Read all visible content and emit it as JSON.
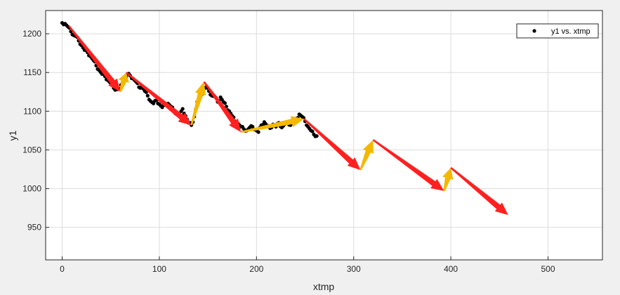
{
  "chart_data": {
    "type": "scatter",
    "xlabel": "xtmp",
    "ylabel": "y1",
    "xlim": [
      -17,
      556
    ],
    "ylim": [
      908,
      1230
    ],
    "xticks": [
      0,
      100,
      200,
      300,
      400,
      500
    ],
    "yticks": [
      950,
      1000,
      1050,
      1100,
      1150,
      1200
    ],
    "grid": true,
    "legend_position": "top-right",
    "legend": [
      "y1 vs. xtmp"
    ],
    "colors": {
      "down": "#ff2020",
      "up": "#f5b800",
      "points": "#000000",
      "axes_bg": "#ffffff",
      "figure_bg": "#f0f0f0"
    },
    "series": [
      {
        "name": "y1 vs. xtmp",
        "kind": "points",
        "color": "#000000",
        "points": [
          [
            0,
            1214
          ],
          [
            3,
            1213
          ],
          [
            6,
            1209
          ],
          [
            9,
            1203
          ],
          [
            12,
            1198
          ],
          [
            14,
            1197
          ],
          [
            17,
            1191
          ],
          [
            20,
            1185
          ],
          [
            23,
            1179
          ],
          [
            26,
            1176
          ],
          [
            29,
            1171
          ],
          [
            32,
            1166
          ],
          [
            35,
            1159
          ],
          [
            38,
            1153
          ],
          [
            41,
            1148
          ],
          [
            44,
            1145
          ],
          [
            47,
            1140
          ],
          [
            50,
            1136
          ],
          [
            53,
            1130
          ],
          [
            56,
            1128
          ],
          [
            59,
            1129
          ],
          [
            62,
            1136
          ],
          [
            65,
            1141
          ],
          [
            67,
            1148
          ],
          [
            70,
            1146
          ],
          [
            73,
            1142
          ],
          [
            76,
            1138
          ],
          [
            79,
            1131
          ],
          [
            82,
            1132
          ],
          [
            85,
            1126
          ],
          [
            88,
            1120
          ],
          [
            91,
            1113
          ],
          [
            94,
            1110
          ],
          [
            97,
            1114
          ],
          [
            100,
            1109
          ],
          [
            103,
            1105
          ],
          [
            106,
            1108
          ],
          [
            109,
            1110
          ],
          [
            112,
            1106
          ],
          [
            115,
            1101
          ],
          [
            118,
            1096
          ],
          [
            121,
            1094
          ],
          [
            124,
            1103
          ],
          [
            127,
            1094
          ],
          [
            130,
            1085
          ],
          [
            133,
            1082
          ],
          [
            136,
            1093
          ],
          [
            139,
            1112
          ],
          [
            142,
            1117
          ],
          [
            145,
            1128
          ],
          [
            148,
            1131
          ],
          [
            151,
            1126
          ],
          [
            154,
            1120
          ],
          [
            157,
            1119
          ],
          [
            160,
            1112
          ],
          [
            163,
            1118
          ],
          [
            166,
            1112
          ],
          [
            169,
            1106
          ],
          [
            172,
            1100
          ],
          [
            175,
            1094
          ],
          [
            178,
            1087
          ],
          [
            181,
            1084
          ],
          [
            184,
            1080
          ],
          [
            187,
            1077
          ],
          [
            190,
            1075
          ],
          [
            193,
            1079
          ],
          [
            196,
            1080
          ],
          [
            199,
            1076
          ],
          [
            202,
            1073
          ],
          [
            205,
            1082
          ],
          [
            208,
            1086
          ],
          [
            211,
            1081
          ],
          [
            214,
            1078
          ],
          [
            217,
            1083
          ],
          [
            220,
            1080
          ],
          [
            223,
            1085
          ],
          [
            226,
            1079
          ],
          [
            229,
            1083
          ],
          [
            232,
            1086
          ],
          [
            235,
            1082
          ],
          [
            238,
            1088
          ],
          [
            241,
            1090
          ],
          [
            244,
            1096
          ],
          [
            247,
            1093
          ],
          [
            250,
            1087
          ],
          [
            253,
            1080
          ],
          [
            256,
            1075
          ],
          [
            259,
            1070
          ],
          [
            262,
            1068
          ]
        ]
      }
    ],
    "arrows": [
      {
        "color": "down",
        "from": [
          7,
          1210
        ],
        "to": [
          60,
          1125
        ]
      },
      {
        "color": "up",
        "from": [
          60,
          1125
        ],
        "to": [
          66,
          1150
        ]
      },
      {
        "color": "down",
        "from": [
          66,
          1150
        ],
        "to": [
          133,
          1082
        ]
      },
      {
        "color": "up",
        "from": [
          133,
          1082
        ],
        "to": [
          146,
          1138
        ]
      },
      {
        "color": "down",
        "from": [
          146,
          1138
        ],
        "to": [
          184,
          1073
        ]
      },
      {
        "color": "up",
        "from": [
          184,
          1073
        ],
        "to": [
          249,
          1090
        ]
      },
      {
        "color": "down",
        "from": [
          249,
          1090
        ],
        "to": [
          307,
          1024
        ]
      },
      {
        "color": "up",
        "from": [
          307,
          1024
        ],
        "to": [
          320,
          1063
        ]
      },
      {
        "color": "down",
        "from": [
          320,
          1063
        ],
        "to": [
          393,
          997
        ]
      },
      {
        "color": "up",
        "from": [
          393,
          997
        ],
        "to": [
          400,
          1027
        ]
      },
      {
        "color": "down",
        "from": [
          400,
          1027
        ],
        "to": [
          459,
          966
        ]
      }
    ]
  }
}
